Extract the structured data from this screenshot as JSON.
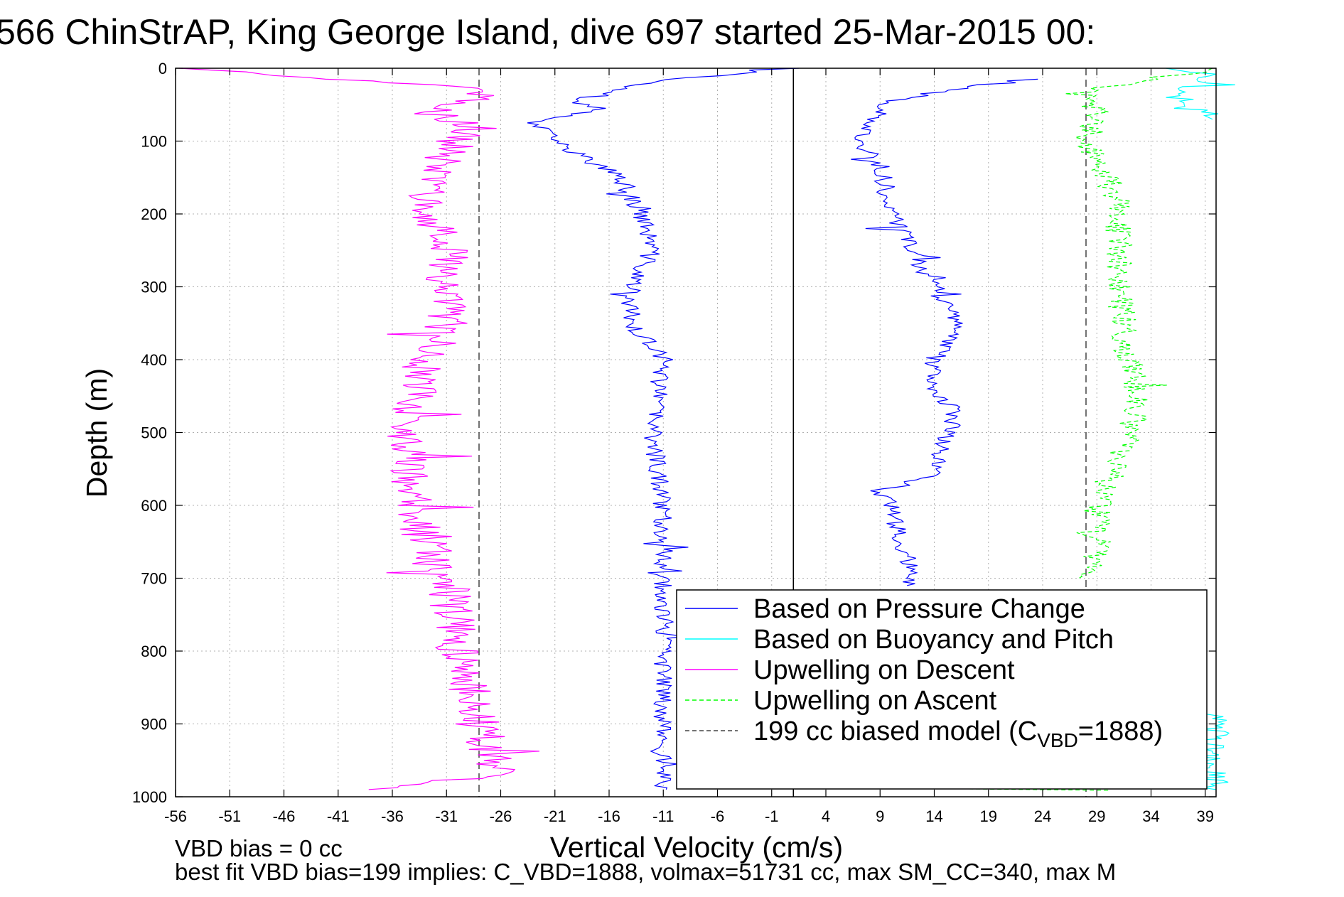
{
  "chart_data": {
    "type": "line",
    "title": "566 ChinStrAP, King George Island, dive 697 started 25-Mar-2015 00:",
    "xlabel": "Vertical Velocity (cm/s)",
    "ylabel": "Depth (m)",
    "xlim": [
      -56,
      40
    ],
    "ylim": [
      0,
      1000
    ],
    "y_reversed": true,
    "grid": true,
    "xticks": [
      -56,
      -51,
      -46,
      -41,
      -36,
      -31,
      -26,
      -21,
      -16,
      -11,
      -6,
      -1,
      4,
      9,
      14,
      19,
      24,
      29,
      34,
      39
    ],
    "yticks": [
      0,
      100,
      200,
      300,
      400,
      500,
      600,
      700,
      800,
      900,
      1000
    ],
    "legend_position": "bottom-right",
    "vlines": [
      {
        "x": 1,
        "style": "solid",
        "color": "#000000"
      },
      {
        "x": -28,
        "style": "dashed",
        "color": "#444444"
      },
      {
        "x": 28,
        "style": "dashed",
        "color": "#444444"
      }
    ],
    "series": [
      {
        "name": "Based on Pressure Change",
        "color": "#0000ff",
        "style": "solid",
        "segments": [
          {
            "x": [
              2,
              -12,
              -19,
              -17,
              -23,
              -21,
              -15,
              -13,
              -12,
              -14,
              -14,
              -11,
              -12,
              -11,
              -11,
              -11,
              -11
            ],
            "y": [
              0,
              18,
              40,
              55,
              75,
              100,
              150,
              200,
              250,
              300,
              350,
              400,
              500,
              600,
              700,
              800,
              990
            ]
          },
          {
            "x": [
              24,
              19,
              8,
              9,
              7,
              9,
              10,
              12,
              14,
              16,
              14,
              14,
              16,
              14,
              9,
              10,
              11,
              12,
              12
            ],
            "y": [
              15,
              20,
              50,
              60,
              100,
              130,
              200,
              250,
              300,
              350,
              400,
              450,
              470,
              560,
              580,
              600,
              650,
              700,
              710
            ]
          }
        ]
      },
      {
        "name": "Based on Buoyancy and Pitch",
        "color": "#00ffff",
        "style": "solid",
        "segments": [
          {
            "x": [
              36,
              39,
              36,
              39,
              40
            ],
            "y": [
              0,
              8,
              50,
              60,
              70
            ]
          },
          {
            "x": [
              39,
              40,
              39,
              40
            ],
            "y": [
              870,
              900,
              940,
              990
            ]
          }
        ]
      },
      {
        "name": "Upwelling on Descent",
        "color": "#ff00ff",
        "style": "solid",
        "segments": [
          {
            "x": [
              -55,
              -26,
              -33,
              -28,
              -30,
              -32,
              -33,
              -31,
              -31,
              -31,
              -33,
              -34,
              -35,
              -34,
              -33,
              -31,
              -30,
              -28,
              -26,
              -39
            ],
            "y": [
              0,
              30,
              60,
              80,
              100,
              150,
              200,
              250,
              300,
              350,
              400,
              450,
              500,
              600,
              650,
              700,
              800,
              900,
              970,
              990
            ]
          }
        ]
      },
      {
        "name": "Upwelling on Ascent",
        "color": "#00ff00",
        "style": "dashed",
        "segments": [
          {
            "x": [
              40,
              28,
              29,
              28,
              30,
              31,
              31,
              32,
              33,
              32,
              29,
              29,
              28
            ],
            "y": [
              0,
              30,
              60,
              100,
              150,
              200,
              300,
              400,
              450,
              500,
              600,
              650,
              700
            ]
          },
          {
            "x": [
              9,
              30
            ],
            "y": [
              988,
              991
            ]
          }
        ]
      },
      {
        "name": "199 cc biased model (C",
        "name_subscript": "VBD",
        "name_suffix": "=1888)",
        "color": "#444444",
        "style": "dashed",
        "segments": []
      }
    ],
    "annotations": [
      "VBD bias = 0 cc",
      "best fit VBD bias=199 implies: C_VBD=1888, volmax=51731 cc, max SM_CC=340, max M"
    ]
  }
}
